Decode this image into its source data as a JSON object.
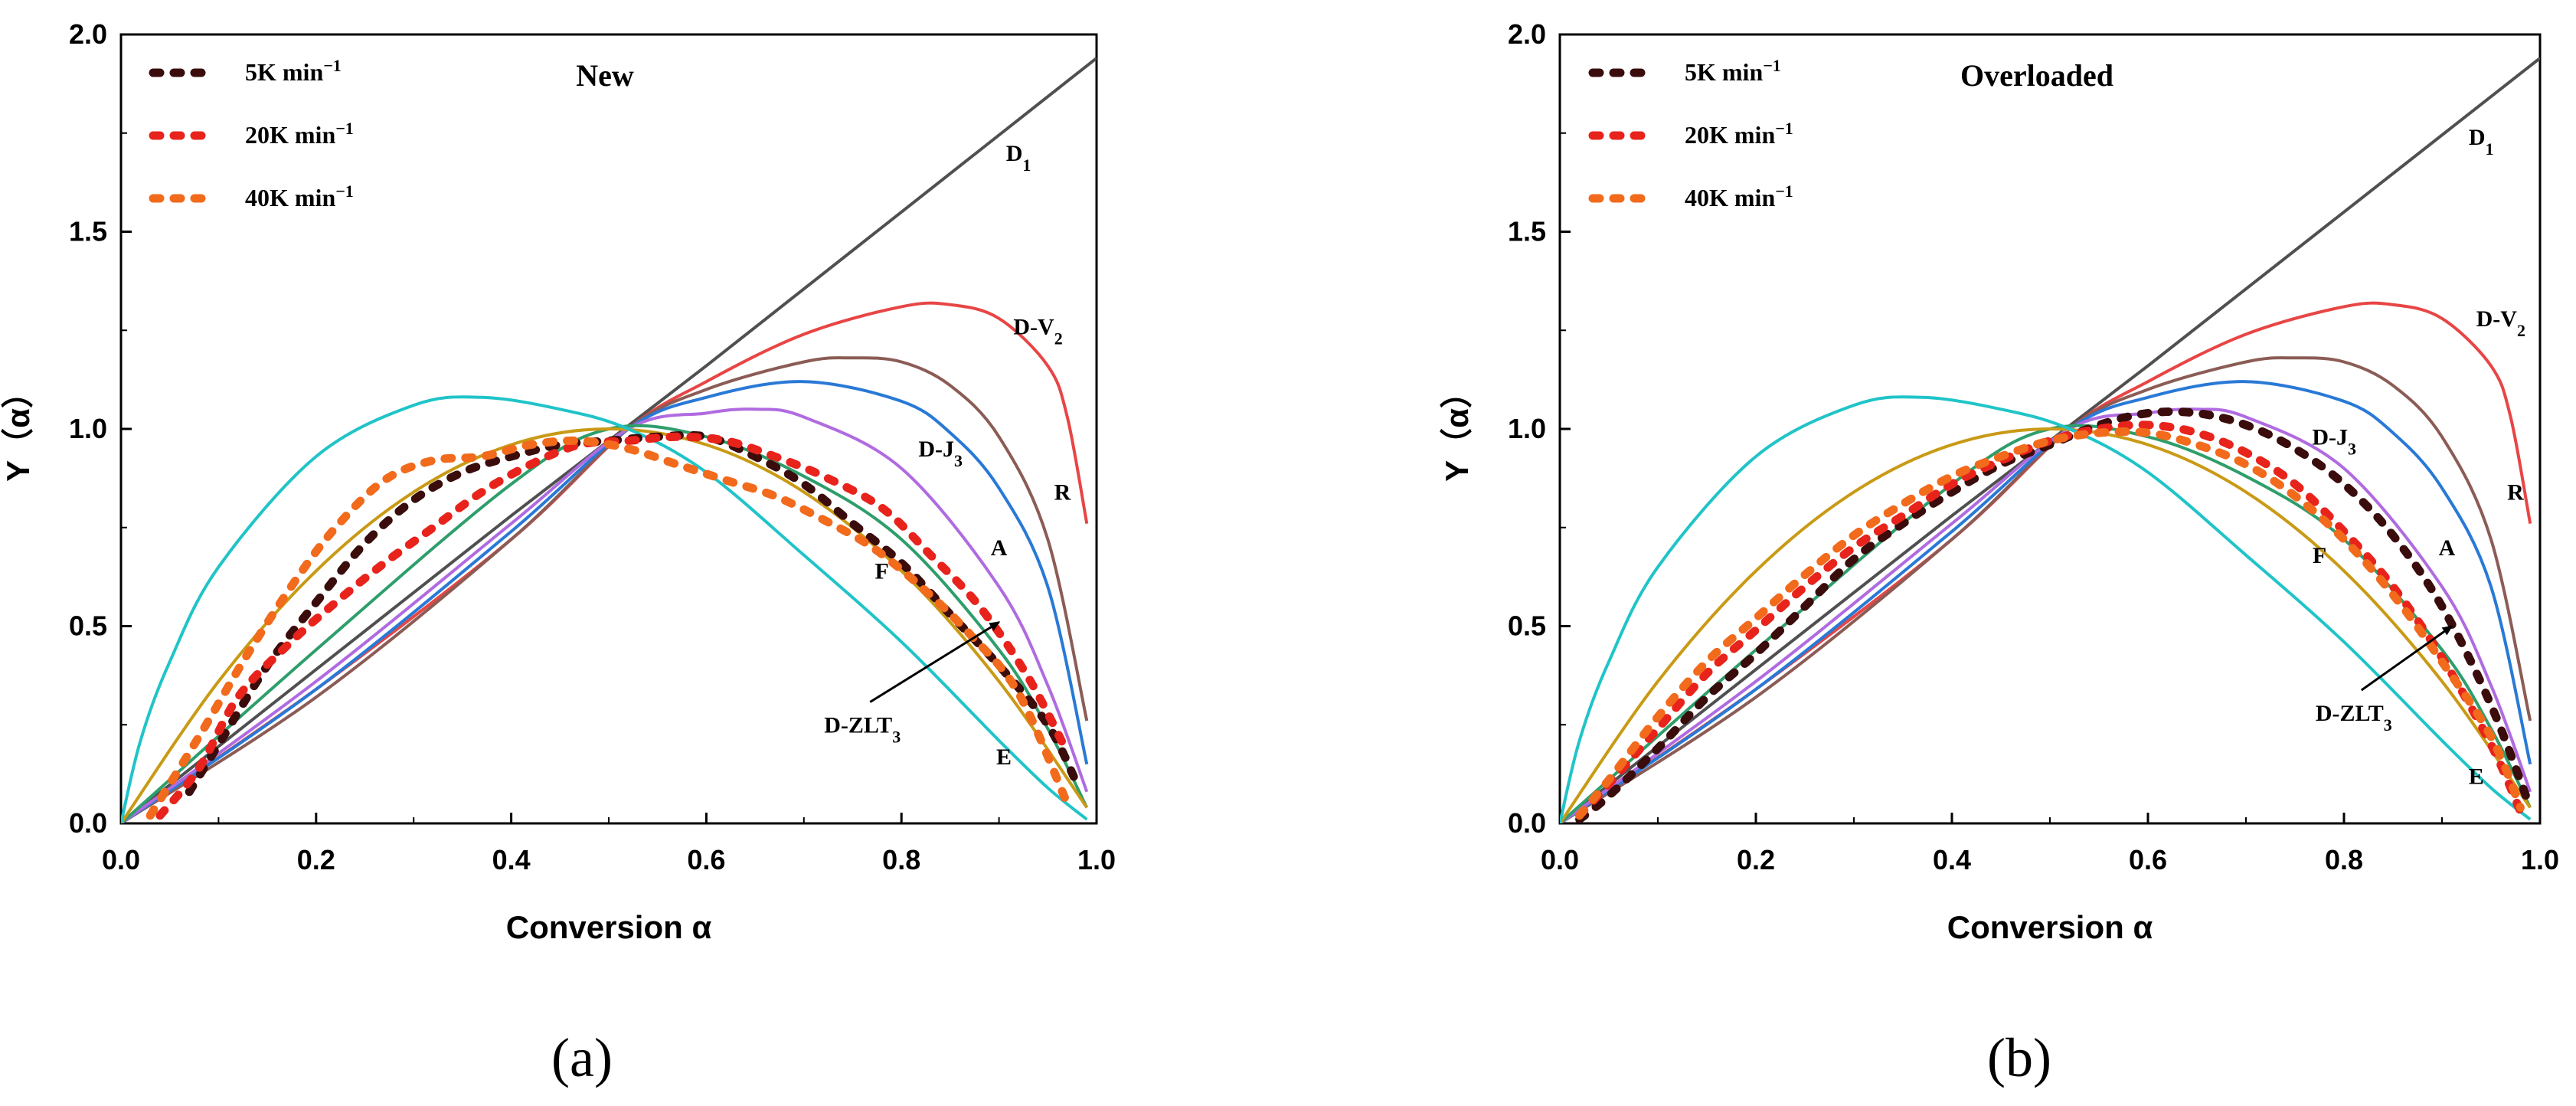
{
  "chart_data": [
    {
      "type": "line",
      "panel_title": "New",
      "subfigure_label": "(a)",
      "xlabel": "Conversion α",
      "ylabel": "Y（α）",
      "xlim": [
        0.0,
        1.0
      ],
      "ylim": [
        0.0,
        2.0
      ],
      "x_ticks": [
        "0.0",
        "0.2",
        "0.4",
        "0.6",
        "0.8",
        "1.0"
      ],
      "y_ticks": [
        "0.0",
        "0.5",
        "1.0",
        "1.5",
        "2.0"
      ],
      "legend_position": "top-left",
      "legend": [
        {
          "label": "5K min",
          "superscript": "−1",
          "color": "#3a0c0c"
        },
        {
          "label": "20K min",
          "superscript": "−1",
          "color": "#e8231c"
        },
        {
          "label": "40K min",
          "superscript": "−1",
          "color": "#f26a1b"
        }
      ],
      "model_curves": [
        {
          "name": "D1",
          "label": "D",
          "subscript": "1",
          "color": "#505050",
          "x": [
            0,
            0.2,
            0.4,
            0.6,
            0.8,
            1.0
          ],
          "y": [
            0,
            0.39,
            0.78,
            1.16,
            1.55,
            1.94
          ]
        },
        {
          "name": "D-V2",
          "label": "D-V",
          "subscript": "2",
          "color": "#e84545",
          "x": [
            0,
            0.2,
            0.4,
            0.52,
            0.6,
            0.7,
            0.8,
            0.85,
            0.9,
            0.95,
            0.97,
            0.99
          ],
          "y": [
            0,
            0.34,
            0.72,
            1.0,
            1.12,
            1.24,
            1.31,
            1.315,
            1.28,
            1.16,
            1.03,
            0.76
          ]
        },
        {
          "name": "R",
          "label": "R",
          "subscript": "",
          "color": "#8b5c55",
          "x": [
            0,
            0.2,
            0.4,
            0.52,
            0.6,
            0.7,
            0.75,
            0.8,
            0.85,
            0.9,
            0.95,
            0.99
          ],
          "y": [
            0,
            0.32,
            0.72,
            1.0,
            1.1,
            1.17,
            1.18,
            1.17,
            1.11,
            0.98,
            0.72,
            0.26
          ]
        },
        {
          "name": "D-J3",
          "label": "D-J",
          "subscript": "3",
          "color": "#2979d6",
          "x": [
            0,
            0.2,
            0.4,
            0.52,
            0.6,
            0.7,
            0.8,
            0.85,
            0.9,
            0.95,
            0.99
          ],
          "y": [
            0,
            0.34,
            0.74,
            1.0,
            1.08,
            1.12,
            1.07,
            0.99,
            0.85,
            0.6,
            0.15
          ]
        },
        {
          "name": "A",
          "label": "A",
          "subscript": "",
          "color": "#b06be0",
          "x": [
            0,
            0.2,
            0.4,
            0.52,
            0.6,
            0.65,
            0.7,
            0.8,
            0.9,
            0.95,
            0.99
          ],
          "y": [
            0,
            0.36,
            0.76,
            1.0,
            1.04,
            1.05,
            1.03,
            0.9,
            0.6,
            0.35,
            0.08
          ]
        },
        {
          "name": "D-ZLT3",
          "label": "D-ZLT",
          "subscript": "3",
          "color": "#2e9e6b",
          "x": [
            0,
            0.2,
            0.4,
            0.5,
            0.6,
            0.7,
            0.8,
            0.9,
            0.95,
            0.99
          ],
          "y": [
            0,
            0.44,
            0.86,
            1.0,
            0.98,
            0.88,
            0.72,
            0.44,
            0.24,
            0.04
          ]
        },
        {
          "name": "F",
          "label": "F",
          "subscript": "",
          "color": "#c99a15",
          "x": [
            0,
            0.1,
            0.2,
            0.3,
            0.4,
            0.5,
            0.6,
            0.7,
            0.8,
            0.9,
            0.99
          ],
          "y": [
            0,
            0.36,
            0.64,
            0.84,
            0.96,
            1.0,
            0.96,
            0.84,
            0.64,
            0.36,
            0.04
          ]
        },
        {
          "name": "E",
          "label": "E",
          "subscript": "",
          "color": "#20c4c8",
          "x": [
            0,
            0.02,
            0.05,
            0.1,
            0.2,
            0.3,
            0.37,
            0.45,
            0.52,
            0.6,
            0.7,
            0.8,
            0.9,
            0.95,
            0.99
          ],
          "y": [
            0,
            0.21,
            0.41,
            0.65,
            0.93,
            1.06,
            1.08,
            1.05,
            1.0,
            0.89,
            0.68,
            0.46,
            0.21,
            0.09,
            0.01
          ]
        }
      ],
      "experimental_series": [
        {
          "name": "5K min-1",
          "color": "#3a0c0c",
          "x": [
            0.07,
            0.1,
            0.15,
            0.2,
            0.25,
            0.3,
            0.35,
            0.4,
            0.45,
            0.5,
            0.55,
            0.6,
            0.65,
            0.7,
            0.75,
            0.8,
            0.85,
            0.9,
            0.95,
            0.98
          ],
          "y": [
            0.08,
            0.2,
            0.4,
            0.56,
            0.71,
            0.82,
            0.89,
            0.93,
            0.96,
            0.97,
            0.98,
            0.98,
            0.93,
            0.86,
            0.76,
            0.66,
            0.53,
            0.4,
            0.25,
            0.1
          ]
        },
        {
          "name": "20K min-1",
          "color": "#e8231c",
          "x": [
            0.04,
            0.08,
            0.12,
            0.17,
            0.22,
            0.27,
            0.32,
            0.37,
            0.42,
            0.47,
            0.52,
            0.57,
            0.62,
            0.67,
            0.72,
            0.78,
            0.83,
            0.88,
            0.93,
            0.97
          ],
          "y": [
            0.02,
            0.14,
            0.32,
            0.45,
            0.56,
            0.66,
            0.75,
            0.84,
            0.91,
            0.96,
            0.97,
            0.98,
            0.97,
            0.93,
            0.88,
            0.8,
            0.68,
            0.55,
            0.37,
            0.18
          ]
        },
        {
          "name": "40K min-1",
          "color": "#f26a1b",
          "x": [
            0.03,
            0.08,
            0.13,
            0.18,
            0.22,
            0.27,
            0.32,
            0.37,
            0.42,
            0.47,
            0.52,
            0.57,
            0.62,
            0.67,
            0.72,
            0.77,
            0.82,
            0.87,
            0.92,
            0.97
          ],
          "y": [
            0.02,
            0.22,
            0.43,
            0.62,
            0.75,
            0.87,
            0.92,
            0.93,
            0.96,
            0.97,
            0.95,
            0.91,
            0.87,
            0.83,
            0.77,
            0.7,
            0.6,
            0.48,
            0.33,
            0.05
          ]
        }
      ],
      "annotation": {
        "text": "D-ZLT",
        "subscript": "3",
        "arrow_to": [
          0.9,
          0.51
        ]
      }
    },
    {
      "type": "line",
      "panel_title": "Overloaded",
      "subfigure_label": "(b)",
      "xlabel": "Conversion α",
      "ylabel": "Y（α）",
      "xlim": [
        0.0,
        1.0
      ],
      "ylim": [
        0.0,
        2.0
      ],
      "x_ticks": [
        "0.0",
        "0.2",
        "0.4",
        "0.6",
        "0.8",
        "1.0"
      ],
      "y_ticks": [
        "0.0",
        "0.5",
        "1.0",
        "1.5",
        "2.0"
      ],
      "legend_position": "top-left",
      "legend": [
        {
          "label": "5K min",
          "superscript": "−1",
          "color": "#3a0c0c"
        },
        {
          "label": "20K min",
          "superscript": "−1",
          "color": "#e8231c"
        },
        {
          "label": "40K min",
          "superscript": "−1",
          "color": "#f26a1b"
        }
      ],
      "model_curves": [
        {
          "name": "D1",
          "label": "D",
          "subscript": "1",
          "color": "#505050",
          "x": [
            0,
            0.2,
            0.4,
            0.6,
            0.8,
            1.0
          ],
          "y": [
            0,
            0.39,
            0.78,
            1.16,
            1.55,
            1.94
          ]
        },
        {
          "name": "D-V2",
          "label": "D-V",
          "subscript": "2",
          "color": "#e84545",
          "x": [
            0,
            0.2,
            0.4,
            0.52,
            0.6,
            0.7,
            0.8,
            0.85,
            0.9,
            0.95,
            0.97,
            0.99
          ],
          "y": [
            0,
            0.34,
            0.72,
            1.0,
            1.12,
            1.24,
            1.31,
            1.315,
            1.28,
            1.16,
            1.03,
            0.76
          ]
        },
        {
          "name": "R",
          "label": "R",
          "subscript": "",
          "color": "#8b5c55",
          "x": [
            0,
            0.2,
            0.4,
            0.52,
            0.6,
            0.7,
            0.75,
            0.8,
            0.85,
            0.9,
            0.95,
            0.99
          ],
          "y": [
            0,
            0.32,
            0.72,
            1.0,
            1.1,
            1.17,
            1.18,
            1.17,
            1.11,
            0.98,
            0.72,
            0.26
          ]
        },
        {
          "name": "D-J3",
          "label": "D-J",
          "subscript": "3",
          "color": "#2979d6",
          "x": [
            0,
            0.2,
            0.4,
            0.52,
            0.6,
            0.7,
            0.8,
            0.85,
            0.9,
            0.95,
            0.99
          ],
          "y": [
            0,
            0.34,
            0.74,
            1.0,
            1.08,
            1.12,
            1.07,
            0.99,
            0.85,
            0.6,
            0.15
          ]
        },
        {
          "name": "A",
          "label": "A",
          "subscript": "",
          "color": "#b06be0",
          "x": [
            0,
            0.2,
            0.4,
            0.52,
            0.6,
            0.65,
            0.7,
            0.8,
            0.9,
            0.95,
            0.99
          ],
          "y": [
            0,
            0.36,
            0.76,
            1.0,
            1.04,
            1.05,
            1.03,
            0.9,
            0.6,
            0.35,
            0.08
          ]
        },
        {
          "name": "D-ZLT3",
          "label": "D-ZLT",
          "subscript": "3",
          "color": "#2e9e6b",
          "x": [
            0,
            0.2,
            0.4,
            0.5,
            0.6,
            0.7,
            0.8,
            0.9,
            0.95,
            0.99
          ],
          "y": [
            0,
            0.44,
            0.86,
            1.0,
            0.98,
            0.88,
            0.72,
            0.44,
            0.24,
            0.04
          ]
        },
        {
          "name": "F",
          "label": "F",
          "subscript": "",
          "color": "#c99a15",
          "x": [
            0,
            0.1,
            0.2,
            0.3,
            0.4,
            0.5,
            0.6,
            0.7,
            0.8,
            0.9,
            0.99
          ],
          "y": [
            0,
            0.36,
            0.64,
            0.84,
            0.96,
            1.0,
            0.96,
            0.84,
            0.64,
            0.36,
            0.04
          ]
        },
        {
          "name": "E",
          "label": "E",
          "subscript": "",
          "color": "#20c4c8",
          "x": [
            0,
            0.02,
            0.05,
            0.1,
            0.2,
            0.3,
            0.37,
            0.45,
            0.52,
            0.6,
            0.7,
            0.8,
            0.9,
            0.95,
            0.99
          ],
          "y": [
            0,
            0.21,
            0.41,
            0.65,
            0.93,
            1.06,
            1.08,
            1.05,
            1.0,
            0.89,
            0.68,
            0.46,
            0.21,
            0.09,
            0.01
          ]
        }
      ],
      "experimental_series": [
        {
          "name": "5K min-1",
          "color": "#3a0c0c",
          "x": [
            0.02,
            0.05,
            0.1,
            0.15,
            0.2,
            0.25,
            0.3,
            0.35,
            0.4,
            0.45,
            0.5,
            0.55,
            0.6,
            0.65,
            0.7,
            0.75,
            0.8,
            0.85,
            0.9,
            0.95,
            0.99
          ],
          "y": [
            0.01,
            0.07,
            0.19,
            0.32,
            0.43,
            0.55,
            0.67,
            0.76,
            0.84,
            0.91,
            0.96,
            1.01,
            1.04,
            1.04,
            1.01,
            0.95,
            0.86,
            0.73,
            0.55,
            0.3,
            0.04
          ]
        },
        {
          "name": "20K min-1",
          "color": "#e8231c",
          "x": [
            0.02,
            0.05,
            0.1,
            0.15,
            0.2,
            0.25,
            0.3,
            0.35,
            0.4,
            0.45,
            0.5,
            0.55,
            0.6,
            0.65,
            0.7,
            0.75,
            0.8,
            0.85,
            0.9,
            0.95,
            0.98
          ],
          "y": [
            0.02,
            0.1,
            0.24,
            0.38,
            0.49,
            0.6,
            0.7,
            0.78,
            0.86,
            0.92,
            0.97,
            1.0,
            1.01,
            0.99,
            0.94,
            0.86,
            0.74,
            0.6,
            0.42,
            0.2,
            0.03
          ]
        },
        {
          "name": "40K min-1",
          "color": "#f26a1b",
          "x": [
            0.02,
            0.05,
            0.1,
            0.15,
            0.2,
            0.25,
            0.3,
            0.35,
            0.4,
            0.45,
            0.5,
            0.55,
            0.6,
            0.65,
            0.7,
            0.75,
            0.8,
            0.85,
            0.9,
            0.95,
            0.98
          ],
          "y": [
            0.02,
            0.11,
            0.27,
            0.41,
            0.52,
            0.63,
            0.73,
            0.81,
            0.88,
            0.93,
            0.97,
            0.99,
            0.99,
            0.96,
            0.91,
            0.83,
            0.72,
            0.58,
            0.41,
            0.22,
            0.04
          ]
        }
      ],
      "annotation": {
        "text": "D-ZLT",
        "subscript": "3",
        "arrow_to": [
          0.91,
          0.5
        ]
      }
    }
  ]
}
